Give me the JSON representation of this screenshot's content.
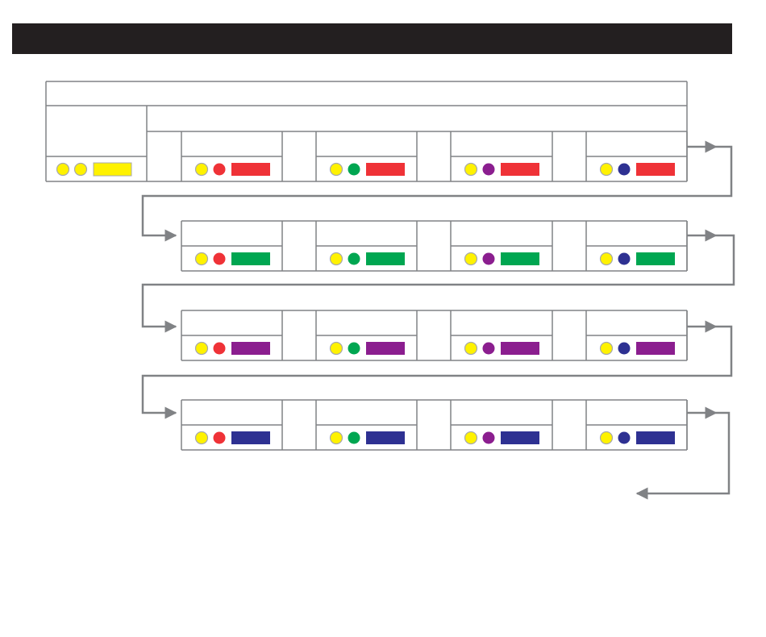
{
  "header": {
    "title": ""
  },
  "colors": {
    "yellow": "#fff200",
    "red": "#ef3237",
    "green": "#00a651",
    "purple": "#8b1e8f",
    "blue": "#2e3192",
    "line": "#808285",
    "header_bg": "#231f20"
  },
  "start": {
    "dots": [
      "yellow",
      "yellow"
    ],
    "bar": "yellow"
  },
  "rows": [
    {
      "bar": "red",
      "cells": [
        {
          "dots": [
            "yellow",
            "red"
          ]
        },
        {
          "dots": [
            "yellow",
            "green"
          ]
        },
        {
          "dots": [
            "yellow",
            "purple"
          ]
        },
        {
          "dots": [
            "yellow",
            "blue"
          ]
        }
      ]
    },
    {
      "bar": "green",
      "cells": [
        {
          "dots": [
            "yellow",
            "red"
          ]
        },
        {
          "dots": [
            "yellow",
            "green"
          ]
        },
        {
          "dots": [
            "yellow",
            "purple"
          ]
        },
        {
          "dots": [
            "yellow",
            "blue"
          ]
        }
      ]
    },
    {
      "bar": "purple",
      "cells": [
        {
          "dots": [
            "yellow",
            "red"
          ]
        },
        {
          "dots": [
            "yellow",
            "green"
          ]
        },
        {
          "dots": [
            "yellow",
            "purple"
          ]
        },
        {
          "dots": [
            "yellow",
            "blue"
          ]
        }
      ]
    },
    {
      "bar": "blue",
      "cells": [
        {
          "dots": [
            "yellow",
            "red"
          ]
        },
        {
          "dots": [
            "yellow",
            "green"
          ]
        },
        {
          "dots": [
            "yellow",
            "purple"
          ]
        },
        {
          "dots": [
            "yellow",
            "blue"
          ]
        }
      ]
    }
  ]
}
